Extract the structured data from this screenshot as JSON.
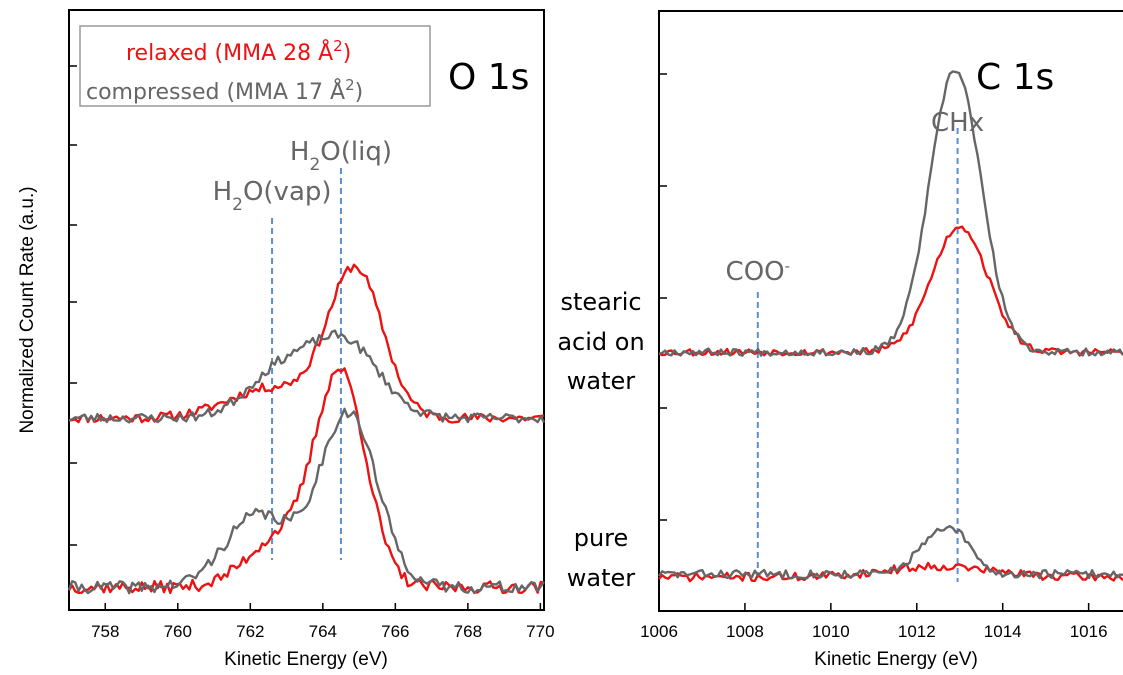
{
  "colors": {
    "relaxed": "#ee1111",
    "compressed": "#666666",
    "marker": "#5b8fd0",
    "axis": "#000000"
  },
  "sample_labels": {
    "stearic": [
      "stearic",
      "acid on",
      "water"
    ],
    "pure": [
      "pure",
      "water"
    ]
  },
  "chart_data": [
    {
      "type": "line",
      "panel": "O 1s",
      "title": "O 1s",
      "xlabel": "Kinetic Energy (eV)",
      "ylabel": "Normalized Count Rate (a.u.)",
      "xlim": [
        757,
        770.1
      ],
      "ylim": [
        0,
        10
      ],
      "xticks": [
        758,
        760,
        762,
        764,
        766,
        768,
        770
      ],
      "grid": false,
      "legend": {
        "placement": "top-left",
        "entries": [
          {
            "series": "relaxed",
            "base": "relaxed (MMA 28 Å",
            "sup": "2",
            "tail": ")"
          },
          {
            "series": "compressed",
            "base": "compressed (MMA 17 Å",
            "sup": "2",
            "tail": ")"
          }
        ]
      },
      "markers": [
        {
          "x": 762.6,
          "label_parts": [
            [
              "H",
              ""
            ],
            [
              "2",
              "sub"
            ],
            [
              "O(vap)",
              ""
            ]
          ]
        },
        {
          "x": 764.5,
          "label_parts": [
            [
              "H",
              ""
            ],
            [
              "2",
              "sub"
            ],
            [
              "O(liq)",
              ""
            ]
          ]
        }
      ],
      "groups": [
        {
          "name": "stearic acid on water",
          "series": [
            {
              "key": "relaxed",
              "peaks": [
                [
                  764.9,
                  2.45,
                  0.75
                ],
                [
                  762.6,
                  0.5,
                  1.2
                ]
              ],
              "baseline": 3.2,
              "noise": 0.08,
              "seed": 11
            },
            {
              "key": "compressed",
              "peaks": [
                [
                  764.6,
                  1.25,
                  0.95
                ],
                [
                  762.8,
                  0.75,
                  0.9
                ]
              ],
              "baseline": 3.2,
              "noise": 0.08,
              "seed": 23
            }
          ]
        },
        {
          "name": "pure water",
          "series": [
            {
              "key": "relaxed",
              "peaks": [
                [
                  764.5,
                  3.5,
                  0.7
                ],
                [
                  762.8,
                  0.8,
                  0.9
                ]
              ],
              "baseline": 0.38,
              "noise": 0.1,
              "seed": 37
            },
            {
              "key": "compressed",
              "peaks": [
                [
                  764.7,
                  2.9,
                  0.8
                ],
                [
                  762.2,
                  1.2,
                  0.9
                ]
              ],
              "baseline": 0.38,
              "noise": 0.1,
              "seed": 41
            }
          ]
        }
      ]
    },
    {
      "type": "line",
      "panel": "C 1s",
      "title": "C 1s",
      "xlabel": "Kinetic Energy (eV)",
      "xlim": [
        1006,
        1016.8
      ],
      "ylim": [
        0,
        10
      ],
      "xticks": [
        1006,
        1008,
        1010,
        1012,
        1014,
        1016
      ],
      "grid": false,
      "markers": [
        {
          "x": 1008.3,
          "label_parts": [
            [
              "COO",
              ""
            ],
            [
              "-",
              "sup"
            ]
          ]
        },
        {
          "x": 1012.95,
          "label_parts": [
            [
              "CHx",
              ""
            ]
          ]
        }
      ],
      "groups": [
        {
          "name": "stearic acid on water",
          "series": [
            {
              "key": "relaxed",
              "peaks": [
                [
                  1013.0,
                  2.1,
                  0.65
                ]
              ],
              "baseline": 4.3,
              "noise": 0.06,
              "seed": 53
            },
            {
              "key": "compressed",
              "peaks": [
                [
                  1012.9,
                  4.7,
                  0.6
                ]
              ],
              "baseline": 4.3,
              "noise": 0.06,
              "seed": 67
            }
          ]
        },
        {
          "name": "pure water",
          "series": [
            {
              "key": "relaxed",
              "peaks": [
                [
                  1012.5,
                  0.18,
                  1.2
                ]
              ],
              "baseline": 0.55,
              "noise": 0.07,
              "seed": 71
            },
            {
              "key": "compressed",
              "peaks": [
                [
                  1012.4,
                  0.55,
                  0.45
                ],
                [
                  1013.0,
                  0.45,
                  0.35
                ]
              ],
              "baseline": 0.6,
              "noise": 0.07,
              "seed": 83
            }
          ]
        }
      ]
    }
  ]
}
